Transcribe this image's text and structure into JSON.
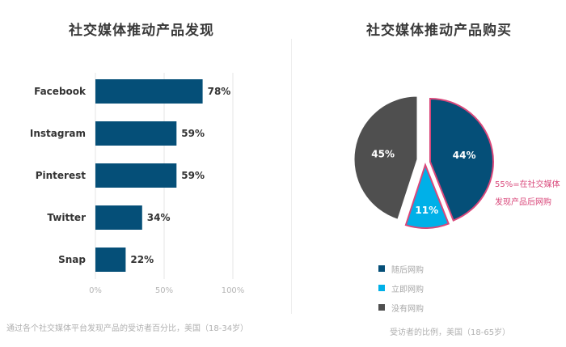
{
  "left_title": "社交媒体推动产品发现",
  "right_title": "社交媒体推动产品购买",
  "left_caption": "通过各个社交媒体平台发现产品的受访者百分比，美国（18-34岁）",
  "right_caption": "受访者的比例，美国（18-65岁）",
  "callout_line1": "55%=在社交媒体",
  "callout_line2": "发现产品后网购",
  "colors": {
    "bar": "#054f78",
    "random": "#054f78",
    "instant": "#00b0e8",
    "none": "#4f4f4f",
    "callout": "#d9477a"
  },
  "chart_data": [
    {
      "type": "bar",
      "orientation": "horizontal",
      "categories": [
        "Facebook",
        "Instagram",
        "Pinterest",
        "Twitter",
        "Snap"
      ],
      "values": [
        78,
        59,
        59,
        34,
        22
      ],
      "value_labels": [
        "78%",
        "59%",
        "59%",
        "34%",
        "22%"
      ],
      "xlim": [
        0,
        100
      ],
      "xticks": [
        "0%",
        "50%",
        "100%"
      ],
      "grid": true
    },
    {
      "type": "pie",
      "slices": [
        {
          "name": "随后网购",
          "value": 44,
          "label": "44%"
        },
        {
          "name": "立即网购",
          "value": 11,
          "label": "11%"
        },
        {
          "name": "没有网购",
          "value": 45,
          "label": "45%"
        }
      ],
      "legend": [
        "随后网购",
        "立即网购",
        "没有网购"
      ],
      "legend_position": "bottom"
    }
  ]
}
